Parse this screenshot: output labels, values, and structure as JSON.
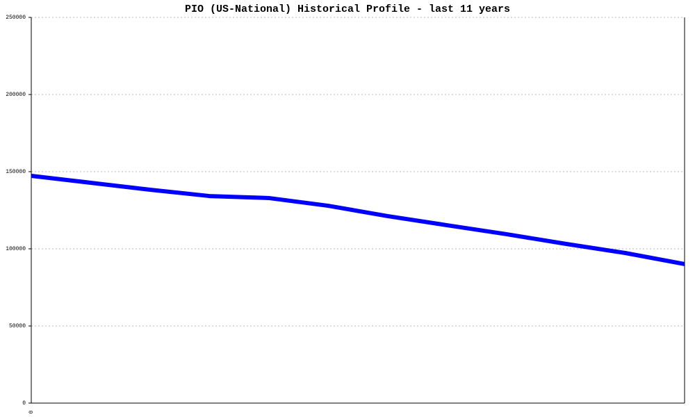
{
  "chart_data": {
    "type": "line",
    "title": "PIO (US-National) Historical Profile - last 11 years",
    "categories": [
      "0",
      null,
      null,
      null,
      null,
      null,
      null,
      null,
      null,
      null,
      null,
      null
    ],
    "series": [
      {
        "name": "PIO",
        "color": "#0000ff",
        "values": [
          147300,
          142800,
          138300,
          134200,
          132900,
          127900,
          121200,
          115300,
          109500,
          103200,
          97300,
          90100
        ]
      }
    ],
    "ylim": [
      0,
      250000
    ],
    "yticks": [
      0,
      50000,
      100000,
      150000,
      200000,
      250000
    ],
    "grid": true,
    "legend": false
  }
}
